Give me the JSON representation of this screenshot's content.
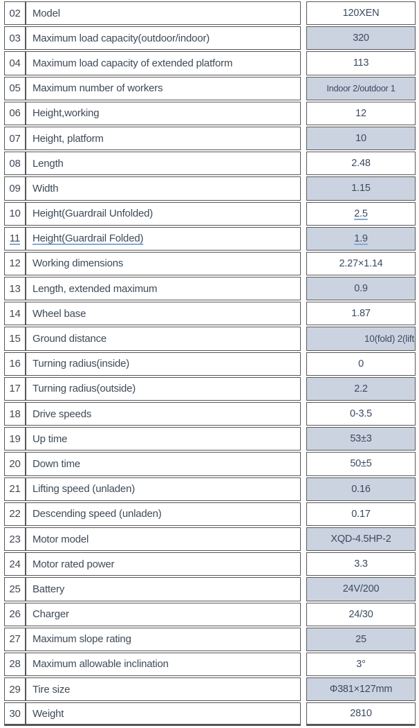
{
  "document": {
    "type": "specification-table",
    "model_name": "120XEN"
  },
  "colors": {
    "shaded_cell": "#ccd3e0",
    "border": "#565656",
    "label_text": "#3e4a57",
    "value_text": "#3b4a61",
    "underline": "#7fa9da"
  },
  "table": {
    "rows": [
      {
        "no": "02",
        "label": "Model",
        "value": "120XEN",
        "shaded": false
      },
      {
        "no": "03",
        "label": "Maximum load capacity(outdoor/indoor)",
        "value": "320",
        "shaded": true
      },
      {
        "no": "04",
        "label": "Maximum load capacity of extended platform",
        "value": "113",
        "shaded": false
      },
      {
        "no": "05",
        "label": "Maximum number of workers",
        "value": "Indoor  2/outdoor  1",
        "shaded": true,
        "small": true
      },
      {
        "no": "06",
        "label": "Height,working",
        "value": "12",
        "shaded": false
      },
      {
        "no": "07",
        "label": "Height, platform",
        "value": "10",
        "shaded": true
      },
      {
        "no": "08",
        "label": "Length",
        "value": "2.48",
        "shaded": false
      },
      {
        "no": "09",
        "label": "Width",
        "value": "1.15",
        "shaded": true
      },
      {
        "no": "10",
        "label": "Height(Guardrail Unfolded)",
        "value": "2.5",
        "shaded": false,
        "underline_value": true
      },
      {
        "no": "11",
        "label": "Height(Guardrail Folded)",
        "value": "1.9",
        "shaded": true,
        "underline_value": true,
        "underline_label": true,
        "underline_no": true
      },
      {
        "no": "12",
        "label": "Working dimensions",
        "value": "2.27×1.14",
        "shaded": false
      },
      {
        "no": "13",
        "label": "Length, extended maximum",
        "value": "0.9",
        "shaded": true
      },
      {
        "no": "14",
        "label": "Wheel base",
        "value": "1.87",
        "shaded": false
      },
      {
        "no": "15",
        "label": "Ground distance",
        "value": "10(fold)  2(lift",
        "shaded": true,
        "clip": true
      },
      {
        "no": "16",
        "label": "Turning radius(inside)",
        "value": "0",
        "shaded": false
      },
      {
        "no": "17",
        "label": "Turning radius(outside)",
        "value": "2.2",
        "shaded": true
      },
      {
        "no": "18",
        "label": "Drive speeds",
        "value": "0-3.5",
        "shaded": false
      },
      {
        "no": "19",
        "label": "Up time",
        "value": "53±3",
        "shaded": true
      },
      {
        "no": "20",
        "label": "Down time",
        "value": "50±5",
        "shaded": false
      },
      {
        "no": "21",
        "label": "Lifting speed (unladen)",
        "value": "0.16",
        "shaded": true
      },
      {
        "no": "22",
        "label": "Descending speed (unladen)",
        "value": "0.17",
        "shaded": false
      },
      {
        "no": "23",
        "label": "Motor model",
        "value": "XQD-4.5HP-2",
        "shaded": true
      },
      {
        "no": "24",
        "label": "Motor rated power",
        "value": "3.3",
        "shaded": false
      },
      {
        "no": "25",
        "label": "Battery",
        "value": "24V/200",
        "shaded": true
      },
      {
        "no": "26",
        "label": "Charger",
        "value": "24/30",
        "shaded": false
      },
      {
        "no": "27",
        "label": "Maximum slope rating",
        "value": "25",
        "shaded": true
      },
      {
        "no": "28",
        "label": "Maximum allowable inclination",
        "value": "3°",
        "shaded": false
      },
      {
        "no": "29",
        "label": "Tire size",
        "value": "Φ381×127mm",
        "shaded": true
      },
      {
        "no": "30",
        "label": "Weight",
        "value": "2810",
        "shaded": false
      }
    ]
  }
}
